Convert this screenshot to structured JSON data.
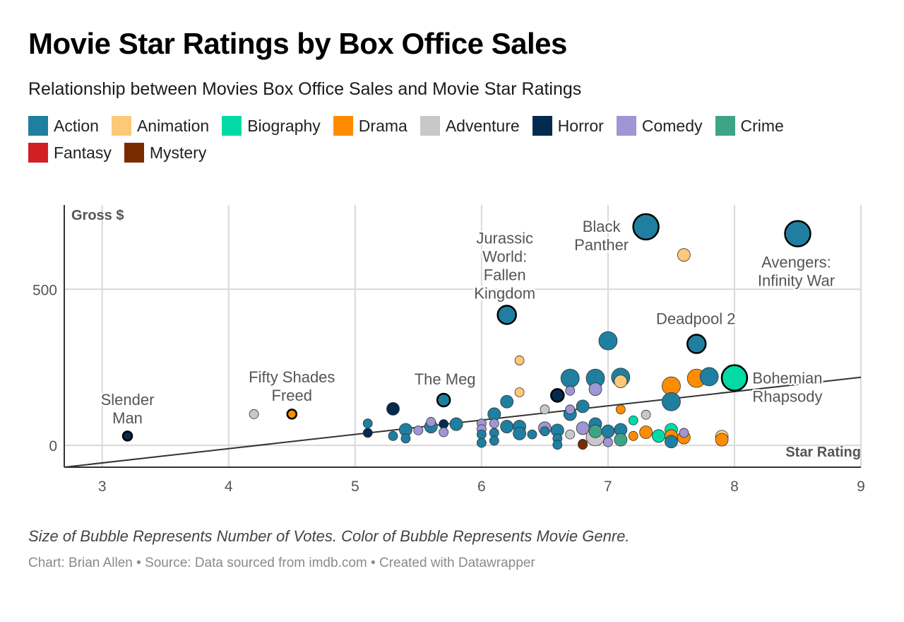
{
  "header": {
    "title": "Movie Star Ratings by Box Office Sales",
    "subtitle": "Relationship between Movies Box Office Sales and Movie Star Ratings"
  },
  "legend": [
    {
      "label": "Action",
      "color": "#1f7fa0"
    },
    {
      "label": "Animation",
      "color": "#fdc878"
    },
    {
      "label": "Biography",
      "color": "#00dba6"
    },
    {
      "label": "Drama",
      "color": "#ff8c00"
    },
    {
      "label": "Adventure",
      "color": "#c8c8c8"
    },
    {
      "label": "Horror",
      "color": "#032b50"
    },
    {
      "label": "Comedy",
      "color": "#9f96d6"
    },
    {
      "label": "Crime",
      "color": "#3fa486"
    },
    {
      "label": "Fantasy",
      "color": "#d21f26"
    },
    {
      "label": "Mystery",
      "color": "#7a2b00"
    }
  ],
  "notes": "Size of Bubble Represents Number of Votes. Color of Bubble Represents Movie Genre.",
  "footer": "Chart: Brian Allen • Source: Data sourced from imdb.com • Created with Datawrapper",
  "chart_data": {
    "type": "scatter",
    "xlabel": "Star Rating",
    "ylabel": "Gross $",
    "xlim": [
      2.7,
      9
    ],
    "ylim": [
      -70,
      770
    ],
    "xticks": [
      "3",
      "4",
      "5",
      "6",
      "7",
      "8",
      "9"
    ],
    "yticks": [
      "0",
      "500"
    ],
    "trendline": {
      "from": [
        2.7,
        -70
      ],
      "to": [
        9,
        218
      ]
    },
    "points": [
      {
        "x": 3.2,
        "y": 30,
        "votes": 1,
        "genre": "Horror",
        "highlight": true
      },
      {
        "x": 4.2,
        "y": 100,
        "votes": 1,
        "genre": "Adventure"
      },
      {
        "x": 4.5,
        "y": 100,
        "votes": 1,
        "genre": "Drama",
        "highlight": true
      },
      {
        "x": 5.1,
        "y": 70,
        "votes": 1,
        "genre": "Action"
      },
      {
        "x": 5.1,
        "y": 40,
        "votes": 1,
        "genre": "Horror"
      },
      {
        "x": 5.3,
        "y": 117,
        "votes": 2,
        "genre": "Horror"
      },
      {
        "x": 5.3,
        "y": 30,
        "votes": 1,
        "genre": "Action"
      },
      {
        "x": 5.4,
        "y": 50,
        "votes": 2,
        "genre": "Action"
      },
      {
        "x": 5.4,
        "y": 22,
        "votes": 1,
        "genre": "Action"
      },
      {
        "x": 5.5,
        "y": 48,
        "votes": 1,
        "genre": "Comedy"
      },
      {
        "x": 5.6,
        "y": 75,
        "votes": 1,
        "genre": "Comedy"
      },
      {
        "x": 5.6,
        "y": 60,
        "votes": 2,
        "genre": "Action"
      },
      {
        "x": 5.7,
        "y": 145,
        "votes": 2,
        "genre": "Action",
        "highlight": true
      },
      {
        "x": 5.7,
        "y": 68,
        "votes": 1,
        "genre": "Horror"
      },
      {
        "x": 5.7,
        "y": 42,
        "votes": 1,
        "genre": "Comedy"
      },
      {
        "x": 5.8,
        "y": 68,
        "votes": 2,
        "genre": "Action"
      },
      {
        "x": 6.0,
        "y": 70,
        "votes": 1,
        "genre": "Comedy"
      },
      {
        "x": 6.0,
        "y": 52,
        "votes": 1,
        "genre": "Comedy"
      },
      {
        "x": 6.0,
        "y": 35,
        "votes": 1,
        "genre": "Action"
      },
      {
        "x": 6.0,
        "y": 8,
        "votes": 1,
        "genre": "Action"
      },
      {
        "x": 6.1,
        "y": 100,
        "votes": 2,
        "genre": "Action"
      },
      {
        "x": 6.1,
        "y": 70,
        "votes": 1,
        "genre": "Comedy"
      },
      {
        "x": 6.1,
        "y": 40,
        "votes": 1,
        "genre": "Action"
      },
      {
        "x": 6.1,
        "y": 15,
        "votes": 1,
        "genre": "Action"
      },
      {
        "x": 6.2,
        "y": 418,
        "votes": 3,
        "genre": "Action",
        "highlight": true
      },
      {
        "x": 6.2,
        "y": 140,
        "votes": 2,
        "genre": "Action"
      },
      {
        "x": 6.2,
        "y": 60,
        "votes": 2,
        "genre": "Action"
      },
      {
        "x": 6.3,
        "y": 272,
        "votes": 1,
        "genre": "Animation"
      },
      {
        "x": 6.3,
        "y": 170,
        "votes": 1,
        "genre": "Animation"
      },
      {
        "x": 6.3,
        "y": 60,
        "votes": 2,
        "genre": "Action"
      },
      {
        "x": 6.3,
        "y": 38,
        "votes": 2,
        "genre": "Action"
      },
      {
        "x": 6.4,
        "y": 35,
        "votes": 1,
        "genre": "Action"
      },
      {
        "x": 6.5,
        "y": 115,
        "votes": 1,
        "genre": "Adventure"
      },
      {
        "x": 6.5,
        "y": 55,
        "votes": 2,
        "genre": "Comedy"
      },
      {
        "x": 6.5,
        "y": 45,
        "votes": 1,
        "genre": "Action"
      },
      {
        "x": 6.6,
        "y": 160,
        "votes": 2,
        "genre": "Horror",
        "highlight": true
      },
      {
        "x": 6.6,
        "y": 48,
        "votes": 2,
        "genre": "Action"
      },
      {
        "x": 6.6,
        "y": 22,
        "votes": 1,
        "genre": "Action"
      },
      {
        "x": 6.6,
        "y": 2,
        "votes": 1,
        "genre": "Action"
      },
      {
        "x": 6.7,
        "y": 215,
        "votes": 3,
        "genre": "Action"
      },
      {
        "x": 6.7,
        "y": 175,
        "votes": 1,
        "genre": "Comedy"
      },
      {
        "x": 6.7,
        "y": 115,
        "votes": 1,
        "genre": "Comedy"
      },
      {
        "x": 6.7,
        "y": 100,
        "votes": 2,
        "genre": "Action"
      },
      {
        "x": 6.7,
        "y": 35,
        "votes": 1,
        "genre": "Adventure"
      },
      {
        "x": 6.8,
        "y": 125,
        "votes": 2,
        "genre": "Action"
      },
      {
        "x": 6.8,
        "y": 55,
        "votes": 2,
        "genre": "Comedy"
      },
      {
        "x": 6.8,
        "y": 5,
        "votes": 1,
        "genre": "Fantasy"
      },
      {
        "x": 6.8,
        "y": 2,
        "votes": 1,
        "genre": "Mystery"
      },
      {
        "x": 6.9,
        "y": 215,
        "votes": 3,
        "genre": "Action"
      },
      {
        "x": 6.9,
        "y": 180,
        "votes": 2,
        "genre": "Comedy"
      },
      {
        "x": 6.9,
        "y": 68,
        "votes": 2,
        "genre": "Action"
      },
      {
        "x": 6.9,
        "y": 45,
        "votes": 2,
        "genre": "Crime"
      },
      {
        "x": 6.9,
        "y": 28,
        "votes": 3,
        "genre": "Adventure"
      },
      {
        "x": 7.0,
        "y": 335,
        "votes": 3,
        "genre": "Action"
      },
      {
        "x": 7.0,
        "y": 45,
        "votes": 2,
        "genre": "Action"
      },
      {
        "x": 7.0,
        "y": 10,
        "votes": 1,
        "genre": "Comedy"
      },
      {
        "x": 7.1,
        "y": 205,
        "votes": 2,
        "genre": "Animation"
      },
      {
        "x": 7.1,
        "y": 218,
        "votes": 3,
        "genre": "Action"
      },
      {
        "x": 7.1,
        "y": 115,
        "votes": 1,
        "genre": "Drama"
      },
      {
        "x": 7.1,
        "y": 50,
        "votes": 2,
        "genre": "Action"
      },
      {
        "x": 7.1,
        "y": 18,
        "votes": 2,
        "genre": "Crime"
      },
      {
        "x": 7.2,
        "y": 80,
        "votes": 1,
        "genre": "Biography"
      },
      {
        "x": 7.2,
        "y": 30,
        "votes": 1,
        "genre": "Drama"
      },
      {
        "x": 7.3,
        "y": 700,
        "votes": 4,
        "genre": "Action",
        "highlight": true
      },
      {
        "x": 7.3,
        "y": 98,
        "votes": 1,
        "genre": "Adventure"
      },
      {
        "x": 7.3,
        "y": 42,
        "votes": 2,
        "genre": "Drama"
      },
      {
        "x": 7.4,
        "y": 30,
        "votes": 2,
        "genre": "Biography"
      },
      {
        "x": 7.5,
        "y": 190,
        "votes": 3,
        "genre": "Drama"
      },
      {
        "x": 7.5,
        "y": 140,
        "votes": 3,
        "genre": "Action"
      },
      {
        "x": 7.5,
        "y": 50,
        "votes": 2,
        "genre": "Biography"
      },
      {
        "x": 7.5,
        "y": 30,
        "votes": 2,
        "genre": "Drama"
      },
      {
        "x": 7.5,
        "y": 12,
        "votes": 2,
        "genre": "Action"
      },
      {
        "x": 7.6,
        "y": 610,
        "votes": 2,
        "genre": "Animation"
      },
      {
        "x": 7.6,
        "y": 40,
        "votes": 1,
        "genre": "Comedy"
      },
      {
        "x": 7.6,
        "y": 25,
        "votes": 2,
        "genre": "Drama"
      },
      {
        "x": 7.7,
        "y": 325,
        "votes": 3,
        "genre": "Action",
        "highlight": true
      },
      {
        "x": 7.7,
        "y": 215,
        "votes": 3,
        "genre": "Drama"
      },
      {
        "x": 7.8,
        "y": 220,
        "votes": 3,
        "genre": "Action"
      },
      {
        "x": 7.9,
        "y": 28,
        "votes": 2,
        "genre": "Animation"
      },
      {
        "x": 7.9,
        "y": 18,
        "votes": 2,
        "genre": "Drama"
      },
      {
        "x": 8.0,
        "y": 216,
        "votes": 4,
        "genre": "Biography",
        "highlight": true
      },
      {
        "x": 8.5,
        "y": 678,
        "votes": 4,
        "genre": "Action",
        "highlight": true
      }
    ],
    "annotations": [
      {
        "text": [
          "Slender",
          "Man"
        ],
        "x": 3.2,
        "y": 30
      },
      {
        "text": [
          "Fifty Shades",
          "Freed"
        ],
        "x": 4.5,
        "y": 100
      },
      {
        "text": [
          "The Meg"
        ],
        "x": 5.7,
        "y": 145
      },
      {
        "text": [
          "Jurassic",
          "World:",
          "Fallen",
          "Kingdom"
        ],
        "x": 6.2,
        "y": 418
      },
      {
        "text": [
          "Black",
          "Panther"
        ],
        "x": 7.3,
        "y": 700
      },
      {
        "text": [
          "Deadpool 2"
        ],
        "x": 7.7,
        "y": 325
      },
      {
        "text": [
          "Avengers:",
          "Infinity War"
        ],
        "x": 8.5,
        "y": 678
      },
      {
        "text": [
          "Bohemian",
          "Rhapsody"
        ],
        "x": 8.0,
        "y": 216
      }
    ]
  }
}
